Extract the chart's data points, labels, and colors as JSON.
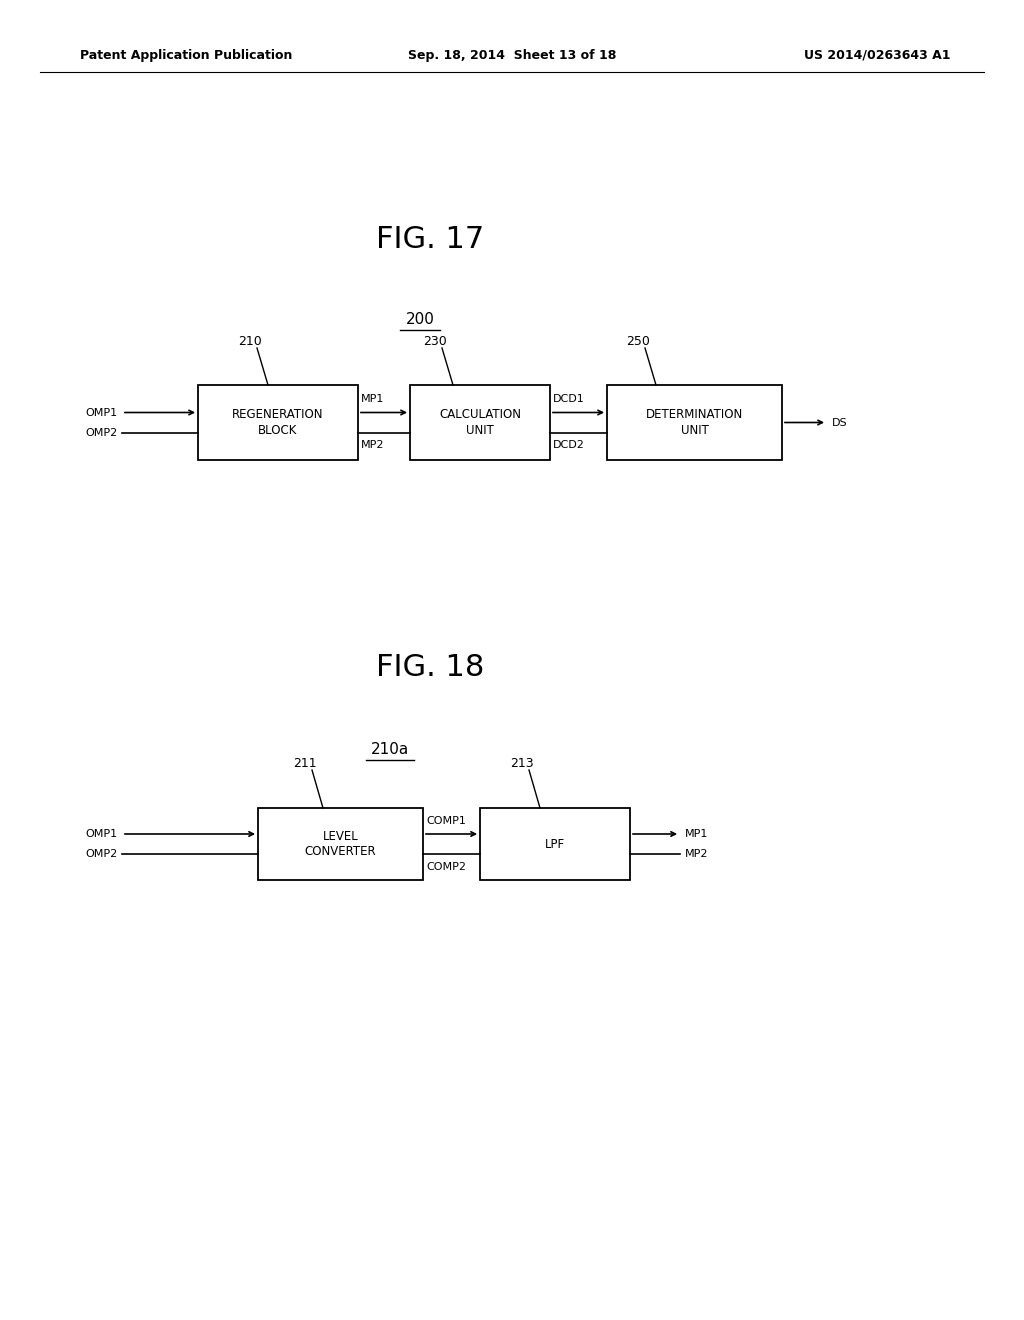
{
  "bg_color": "#ffffff",
  "header_left": "Patent Application Publication",
  "header_mid": "Sep. 18, 2014  Sheet 13 of 18",
  "header_right": "US 2014/0263643 A1",
  "fig17_title": "FIG. 17",
  "fig18_title": "FIG. 18",
  "fig17_ref": "200",
  "fig18_ref": "210a",
  "font_main": "DejaVu Sans"
}
